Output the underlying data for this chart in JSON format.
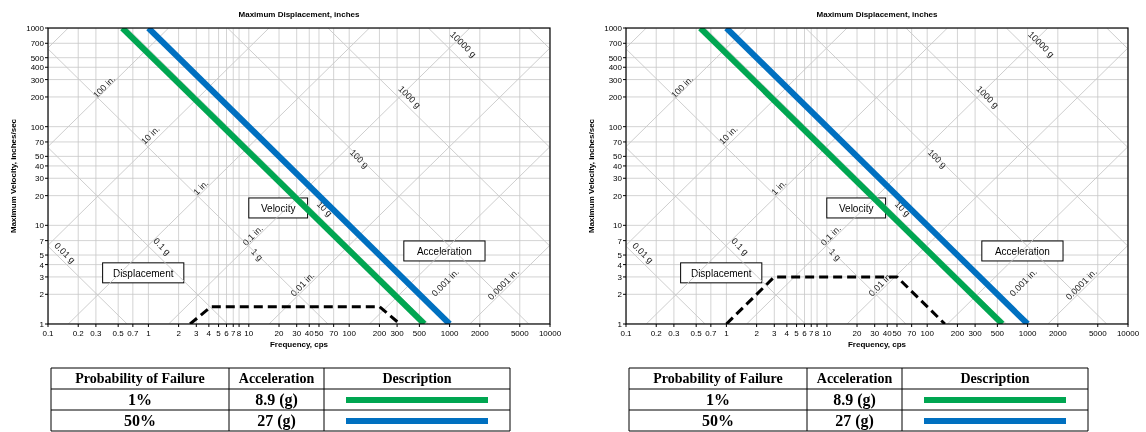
{
  "chart_data": [
    {
      "type": "line",
      "title": "Maximum Displacement, inches",
      "xlabel": "Frequency, cps",
      "ylabel": "Maximum Velocity, inches/sec",
      "log": "xy",
      "grid": true,
      "xlim": [
        0.1,
        10000
      ],
      "ylim": [
        1,
        1000
      ],
      "xticks": [
        0.1,
        0.2,
        0.3,
        0.5,
        0.7,
        1,
        2,
        3,
        4,
        5,
        6,
        7,
        8,
        10,
        20,
        30,
        40,
        50,
        70,
        100,
        200,
        300,
        500,
        1000,
        2000,
        5000,
        10000
      ],
      "yticks": [
        1,
        2,
        3,
        4,
        5,
        7,
        10,
        20,
        30,
        40,
        50,
        70,
        100,
        200,
        300,
        400,
        500,
        700,
        1000
      ],
      "series": [
        {
          "color": "#c8c8c8",
          "x": [
            0.1,
            0.159
          ],
          "values": [
            628,
            1000
          ]
        },
        {
          "color": "#c8c8c8",
          "x": [
            0.1,
            1.59
          ],
          "values": [
            62.8,
            1000
          ]
        },
        {
          "color": "#c8c8c8",
          "x": [
            0.1,
            15.9
          ],
          "values": [
            6.28,
            1000
          ]
        },
        {
          "color": "#c8c8c8",
          "x": [
            0.159,
            159
          ],
          "values": [
            1,
            1000
          ]
        },
        {
          "color": "#c8c8c8",
          "x": [
            1.59,
            1590
          ],
          "values": [
            1,
            1000
          ]
        },
        {
          "color": "#c8c8c8",
          "x": [
            15.9,
            10000
          ],
          "values": [
            1,
            628
          ]
        },
        {
          "color": "#c8c8c8",
          "x": [
            159,
            10000
          ],
          "values": [
            1,
            62.8
          ]
        },
        {
          "color": "#c8c8c8",
          "x": [
            1590,
            10000
          ],
          "values": [
            1,
            6.28
          ]
        },
        {
          "color": "#c8c8c8",
          "x": [
            0.1,
            0.614
          ],
          "values": [
            6.14,
            1
          ]
        },
        {
          "color": "#c8c8c8",
          "x": [
            0.1,
            6.14
          ],
          "values": [
            61.4,
            1
          ]
        },
        {
          "color": "#c8c8c8",
          "x": [
            0.1,
            61.4
          ],
          "values": [
            614,
            1
          ]
        },
        {
          "color": "#c8c8c8",
          "x": [
            0.614,
            614
          ],
          "values": [
            1000,
            1
          ]
        },
        {
          "color": "#c8c8c8",
          "x": [
            6.14,
            6140
          ],
          "values": [
            1000,
            1
          ]
        },
        {
          "color": "#c8c8c8",
          "x": [
            61.4,
            10000
          ],
          "values": [
            1000,
            6.14
          ]
        },
        {
          "color": "#c8c8c8",
          "x": [
            614,
            10000
          ],
          "values": [
            1000,
            61.4
          ]
        },
        {
          "color": "#c8c8c8",
          "x": [
            6140,
            10000
          ],
          "values": [
            1000,
            614
          ]
        },
        {
          "color": "#00a651",
          "x": [
            0.55,
            560
          ],
          "values": [
            1000,
            1
          ]
        },
        {
          "color": "#0070c0",
          "x": [
            1,
            1000
          ],
          "values": [
            1000,
            1
          ]
        },
        {
          "color": "#000000",
          "line_style": "dashed",
          "x": [
            2.6,
            4.2,
            200,
            320
          ],
          "values": [
            1,
            1.5,
            1.5,
            1
          ]
        }
      ],
      "annotations": [
        "0.01 g",
        "0.1 g",
        "1 g",
        "10 g",
        "100 g",
        "1000 g",
        "10000 g",
        "100 in.",
        "10 in.",
        "1 in.",
        "0.1 in.",
        "0.01 in.",
        "0.001 in.",
        "0.0001 in.",
        "Velocity",
        "Displacement",
        "Acceleration",
        "Probability of Failure",
        "Acceleration",
        "Description",
        "1%",
        "8.9 (g)",
        "50%",
        "27 (g)"
      ]
    },
    {
      "type": "line",
      "title": "Maximum Displacement, inches",
      "xlabel": "Frequency, cps",
      "ylabel": "Maximum Velocity, inches/sec",
      "log": "xy",
      "grid": true,
      "xlim": [
        0.1,
        10000
      ],
      "ylim": [
        1,
        1000
      ],
      "xticks": [
        0.1,
        0.2,
        0.3,
        0.5,
        0.7,
        1,
        2,
        3,
        4,
        5,
        6,
        7,
        8,
        10,
        20,
        30,
        40,
        50,
        70,
        100,
        200,
        300,
        500,
        1000,
        2000,
        5000,
        10000
      ],
      "yticks": [
        1,
        2,
        3,
        4,
        5,
        7,
        10,
        20,
        30,
        40,
        50,
        70,
        100,
        200,
        300,
        400,
        500,
        700,
        1000
      ],
      "series": [
        {
          "color": "#c8c8c8",
          "x": [
            0.1,
            0.159
          ],
          "values": [
            628,
            1000
          ]
        },
        {
          "color": "#c8c8c8",
          "x": [
            0.1,
            1.59
          ],
          "values": [
            62.8,
            1000
          ]
        },
        {
          "color": "#c8c8c8",
          "x": [
            0.1,
            15.9
          ],
          "values": [
            6.28,
            1000
          ]
        },
        {
          "color": "#c8c8c8",
          "x": [
            0.159,
            159
          ],
          "values": [
            1,
            1000
          ]
        },
        {
          "color": "#c8c8c8",
          "x": [
            1.59,
            1590
          ],
          "values": [
            1,
            1000
          ]
        },
        {
          "color": "#c8c8c8",
          "x": [
            15.9,
            10000
          ],
          "values": [
            1,
            628
          ]
        },
        {
          "color": "#c8c8c8",
          "x": [
            159,
            10000
          ],
          "values": [
            1,
            62.8
          ]
        },
        {
          "color": "#c8c8c8",
          "x": [
            1590,
            10000
          ],
          "values": [
            1,
            6.28
          ]
        },
        {
          "color": "#c8c8c8",
          "x": [
            0.1,
            0.614
          ],
          "values": [
            6.14,
            1
          ]
        },
        {
          "color": "#c8c8c8",
          "x": [
            0.1,
            6.14
          ],
          "values": [
            61.4,
            1
          ]
        },
        {
          "color": "#c8c8c8",
          "x": [
            0.1,
            61.4
          ],
          "values": [
            614,
            1
          ]
        },
        {
          "color": "#c8c8c8",
          "x": [
            0.614,
            614
          ],
          "values": [
            1000,
            1
          ]
        },
        {
          "color": "#c8c8c8",
          "x": [
            6.14,
            6140
          ],
          "values": [
            1000,
            1
          ]
        },
        {
          "color": "#c8c8c8",
          "x": [
            61.4,
            10000
          ],
          "values": [
            1000,
            6.14
          ]
        },
        {
          "color": "#c8c8c8",
          "x": [
            614,
            10000
          ],
          "values": [
            1000,
            61.4
          ]
        },
        {
          "color": "#c8c8c8",
          "x": [
            6140,
            10000
          ],
          "values": [
            1000,
            614
          ]
        },
        {
          "color": "#00a651",
          "x": [
            0.55,
            560
          ],
          "values": [
            1000,
            1
          ]
        },
        {
          "color": "#0070c0",
          "x": [
            1,
            1000
          ],
          "values": [
            1000,
            1
          ]
        },
        {
          "color": "#000000",
          "line_style": "dashed",
          "x": [
            1,
            3,
            50,
            150
          ],
          "values": [
            1,
            3,
            3,
            1
          ]
        }
      ],
      "annotations": [
        "0.01 g",
        "0.1 g",
        "1 g",
        "10 g",
        "100 g",
        "1000 g",
        "10000 g",
        "100 in.",
        "10 in.",
        "1 in.",
        "0.1 in.",
        "0.01 in.",
        "0.001 in.",
        "0.0001 in.",
        "Velocity",
        "Displacement",
        "Acceleration",
        "Probability of Failure",
        "Acceleration",
        "Description",
        "1%",
        "8.9 (g)",
        "50%",
        "27 (g)"
      ]
    }
  ]
}
